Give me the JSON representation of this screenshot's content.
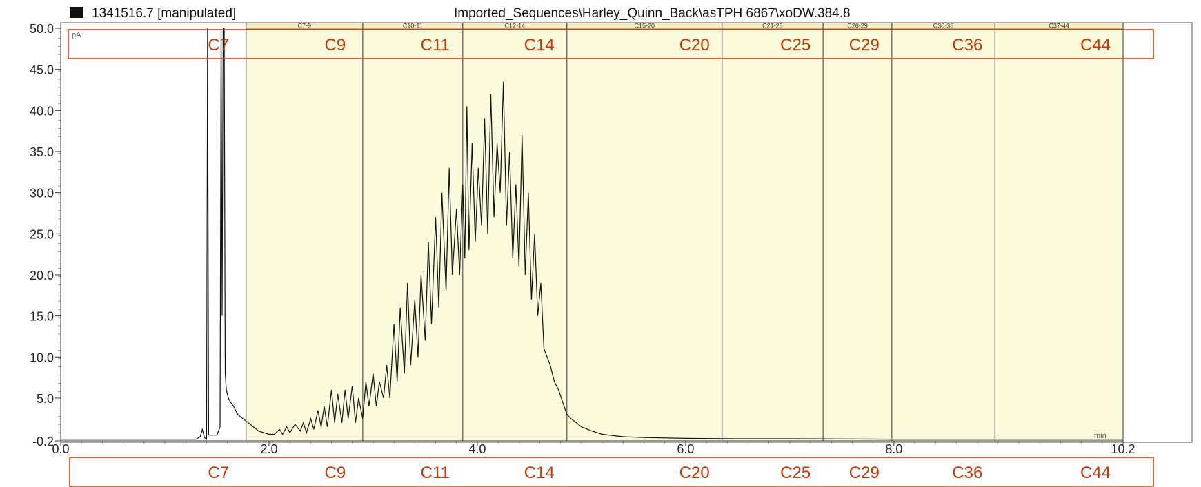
{
  "header": {
    "sample_id": "1341516.7 [manipulated]",
    "path": "Imported_Sequences\\Harley_Quinn_Back\\asTPH 6867\\xoDW.384.8"
  },
  "colors": {
    "band_fill": "#fbfbdc",
    "trace": "#111111",
    "annotation": "#cc3300",
    "divider": "#555555"
  },
  "chart_data": {
    "type": "line",
    "title": "",
    "ylabel": "pA",
    "xlabel": "min",
    "xlim": [
      0.0,
      10.2
    ],
    "ylim": [
      -0.2,
      50.0
    ],
    "grid": false,
    "x_ticks": [
      {
        "v": 0.0,
        "label": "0.0"
      },
      {
        "v": 2.0,
        "label": "2.0"
      },
      {
        "v": 4.0,
        "label": "4.0"
      },
      {
        "v": 6.0,
        "label": "6.0"
      },
      {
        "v": 8.0,
        "label": "8.0"
      },
      {
        "v": 10.2,
        "label": "10.2"
      }
    ],
    "y_ticks": [
      {
        "v": -0.2,
        "label": "-0.2"
      },
      {
        "v": 5.0,
        "label": "5.0"
      },
      {
        "v": 10.0,
        "label": "10.0"
      },
      {
        "v": 15.0,
        "label": "15.0"
      },
      {
        "v": 20.0,
        "label": "20.0"
      },
      {
        "v": 25.0,
        "label": "25.0"
      },
      {
        "v": 30.0,
        "label": "30.0"
      },
      {
        "v": 35.0,
        "label": "35.0"
      },
      {
        "v": 40.0,
        "label": "40.0"
      },
      {
        "v": 45.0,
        "label": "45.0"
      },
      {
        "v": 50.0,
        "label": "50.0"
      }
    ],
    "bands": [
      {
        "label": "C7-9",
        "start": 1.78,
        "end": 2.9
      },
      {
        "label": "C10-11",
        "start": 2.9,
        "end": 3.86
      },
      {
        "label": "C12-14",
        "start": 3.86,
        "end": 4.86
      },
      {
        "label": "C15-20",
        "start": 4.86,
        "end": 6.35
      },
      {
        "label": "C21-25",
        "start": 6.35,
        "end": 7.32
      },
      {
        "label": "C26-29",
        "start": 7.32,
        "end": 7.98
      },
      {
        "label": "C30-36",
        "start": 7.98,
        "end": 8.97
      },
      {
        "label": "C37-44",
        "start": 8.97,
        "end": 10.2
      }
    ],
    "carbon_markers": [
      {
        "label": "C7",
        "x": 1.78
      },
      {
        "label": "C9",
        "x": 2.9
      },
      {
        "label": "C11",
        "x": 3.86
      },
      {
        "label": "C14",
        "x": 4.86
      },
      {
        "label": "C20",
        "x": 6.35
      },
      {
        "label": "C25",
        "x": 7.32
      },
      {
        "label": "C29",
        "x": 7.98
      },
      {
        "label": "C36",
        "x": 8.97
      },
      {
        "label": "C44",
        "x": 10.2
      }
    ],
    "series": [
      {
        "values": [
          [
            0.0,
            0.0
          ],
          [
            1.3,
            0.0
          ],
          [
            1.34,
            0.3
          ],
          [
            1.36,
            1.2
          ],
          [
            1.38,
            0.2
          ],
          [
            1.4,
            0.0
          ],
          [
            1.41,
            50.0
          ],
          [
            1.42,
            0.5
          ],
          [
            1.5,
            0.5
          ],
          [
            1.53,
            1.5
          ],
          [
            1.54,
            50.0
          ],
          [
            1.55,
            15.0
          ],
          [
            1.56,
            50.0
          ],
          [
            1.57,
            50.0
          ],
          [
            1.58,
            8.0
          ],
          [
            1.59,
            6.0
          ],
          [
            1.61,
            5.0
          ],
          [
            1.63,
            4.5
          ],
          [
            1.66,
            4.0
          ],
          [
            1.7,
            3.0
          ],
          [
            1.75,
            2.5
          ],
          [
            1.8,
            2.0
          ],
          [
            1.85,
            1.5
          ],
          [
            1.9,
            1.0
          ],
          [
            1.95,
            0.8
          ],
          [
            2.0,
            0.6
          ],
          [
            2.05,
            0.6
          ],
          [
            2.1,
            1.2
          ],
          [
            2.13,
            0.6
          ],
          [
            2.17,
            1.5
          ],
          [
            2.2,
            0.8
          ],
          [
            2.25,
            1.8
          ],
          [
            2.3,
            1.0
          ],
          [
            2.33,
            2.0
          ],
          [
            2.36,
            0.8
          ],
          [
            2.4,
            2.5
          ],
          [
            2.43,
            1.2
          ],
          [
            2.47,
            3.5
          ],
          [
            2.5,
            1.5
          ],
          [
            2.53,
            4.0
          ],
          [
            2.56,
            1.5
          ],
          [
            2.6,
            6.0
          ],
          [
            2.63,
            2.0
          ],
          [
            2.66,
            5.5
          ],
          [
            2.7,
            2.0
          ],
          [
            2.73,
            6.0
          ],
          [
            2.76,
            2.5
          ],
          [
            2.8,
            6.5
          ],
          [
            2.83,
            2.0
          ],
          [
            2.86,
            5.0
          ],
          [
            2.9,
            2.5
          ],
          [
            2.93,
            7.0
          ],
          [
            2.96,
            4.0
          ],
          [
            3.0,
            8.0
          ],
          [
            3.03,
            4.0
          ],
          [
            3.06,
            7.0
          ],
          [
            3.1,
            5.0
          ],
          [
            3.13,
            9.0
          ],
          [
            3.16,
            5.0
          ],
          [
            3.2,
            14.0
          ],
          [
            3.23,
            7.0
          ],
          [
            3.26,
            16.0
          ],
          [
            3.3,
            8.0
          ],
          [
            3.33,
            19.0
          ],
          [
            3.36,
            9.0
          ],
          [
            3.4,
            17.0
          ],
          [
            3.43,
            10.0
          ],
          [
            3.46,
            20.0
          ],
          [
            3.5,
            12.0
          ],
          [
            3.53,
            24.0
          ],
          [
            3.56,
            14.0
          ],
          [
            3.6,
            27.0
          ],
          [
            3.63,
            16.0
          ],
          [
            3.66,
            30.0
          ],
          [
            3.7,
            18.0
          ],
          [
            3.73,
            33.0
          ],
          [
            3.76,
            20.0
          ],
          [
            3.8,
            28.0
          ],
          [
            3.83,
            20.0
          ],
          [
            3.86,
            31.0
          ],
          [
            3.88,
            22.0
          ],
          [
            3.9,
            40.5
          ],
          [
            3.92,
            23.0
          ],
          [
            3.95,
            36.0
          ],
          [
            3.98,
            24.0
          ],
          [
            4.01,
            33.0
          ],
          [
            4.04,
            26.0
          ],
          [
            4.07,
            39.0
          ],
          [
            4.1,
            25.0
          ],
          [
            4.13,
            42.0
          ],
          [
            4.16,
            27.0
          ],
          [
            4.19,
            36.0
          ],
          [
            4.22,
            30.0
          ],
          [
            4.25,
            43.5
          ],
          [
            4.28,
            26.0
          ],
          [
            4.31,
            35.0
          ],
          [
            4.34,
            22.0
          ],
          [
            4.37,
            31.0
          ],
          [
            4.4,
            21.0
          ],
          [
            4.43,
            37.0
          ],
          [
            4.46,
            20.0
          ],
          [
            4.49,
            30.0
          ],
          [
            4.52,
            17.0
          ],
          [
            4.55,
            25.0
          ],
          [
            4.58,
            15.0
          ],
          [
            4.61,
            19.0
          ],
          [
            4.64,
            11.0
          ],
          [
            4.67,
            10.0
          ],
          [
            4.7,
            9.0
          ],
          [
            4.74,
            7.0
          ],
          [
            4.78,
            6.0
          ],
          [
            4.82,
            4.5
          ],
          [
            4.86,
            3.0
          ],
          [
            4.9,
            2.5
          ],
          [
            4.95,
            2.0
          ],
          [
            5.0,
            1.5
          ],
          [
            5.1,
            1.0
          ],
          [
            5.2,
            0.6
          ],
          [
            5.4,
            0.3
          ],
          [
            5.6,
            0.2
          ],
          [
            6.0,
            0.1
          ],
          [
            6.5,
            0.05
          ],
          [
            7.0,
            0.05
          ],
          [
            8.0,
            0.0
          ],
          [
            9.0,
            0.0
          ],
          [
            10.2,
            0.0
          ]
        ]
      }
    ]
  }
}
